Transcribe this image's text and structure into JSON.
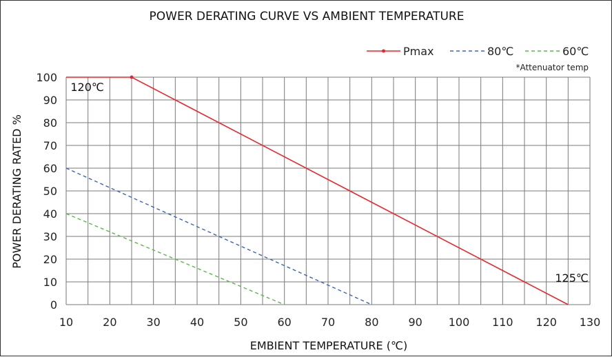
{
  "chart_data": {
    "type": "line",
    "title": "POWER DERATING CURVE VS AMBIENT TEMPERATURE",
    "xlabel": "EMBIENT TEMPERATURE (℃)",
    "ylabel": "POWER DERATING RATED %",
    "xlim": [
      10,
      130
    ],
    "ylim": [
      0,
      100
    ],
    "x_ticks": [
      "10",
      "20",
      "30",
      "40",
      "50",
      "60",
      "70",
      "80",
      "90",
      "100",
      "110",
      "120",
      "130"
    ],
    "y_ticks": [
      "0",
      "10",
      "20",
      "30",
      "40",
      "50",
      "60",
      "70",
      "80",
      "90",
      "100"
    ],
    "grid": true,
    "legend_position": "top-right",
    "legend_note": "*Attenuator temp",
    "series": [
      {
        "name": "Pmax",
        "color": "#e8262c",
        "style": "solid",
        "marker_at_break": true,
        "points": [
          [
            10,
            100
          ],
          [
            25,
            100
          ],
          [
            125,
            0
          ]
        ]
      },
      {
        "name": "80℃",
        "color": "#3a63b8",
        "style": "dashed",
        "points": [
          [
            10,
            60
          ],
          [
            80,
            0
          ]
        ]
      },
      {
        "name": "60℃",
        "color": "#5ab84a",
        "style": "dashed",
        "points": [
          [
            10,
            40
          ],
          [
            60,
            0
          ]
        ]
      }
    ],
    "annotations": [
      {
        "text": "120℃",
        "x": 11,
        "y": 94
      },
      {
        "text": "125℃",
        "x": 122,
        "y": 10
      }
    ]
  }
}
